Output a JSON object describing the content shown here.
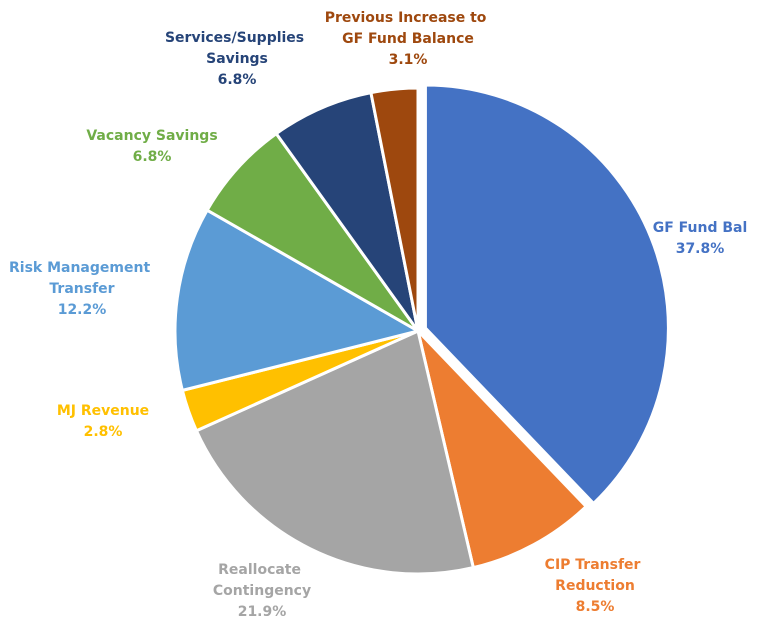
{
  "chart_data": {
    "type": "pie",
    "categories": [
      "GF Fund Bal",
      "CIP Transfer Reduction",
      "Reallocate Contingency",
      "MJ Revenue",
      "Risk Management Transfer",
      "Vacancy Savings",
      "Services/Supplies Savings",
      "Previous Increase to GF Fund Balance"
    ],
    "values": [
      37.8,
      8.5,
      21.9,
      2.8,
      12.2,
      6.8,
      6.8,
      3.1
    ],
    "value_labels": [
      "37.8%",
      "8.5%",
      "21.9%",
      "2.8%",
      "12.2%",
      "6.8%",
      "6.8%",
      "3.1%"
    ],
    "colors": [
      "#4472c4",
      "#ed7d31",
      "#a5a5a5",
      "#ffc000",
      "#5b9bd5",
      "#70ad47",
      "#264478",
      "#9e480e"
    ]
  }
}
